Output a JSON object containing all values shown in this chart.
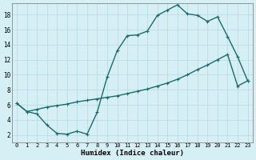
{
  "xlabel": "Humidex (Indice chaleur)",
  "background_color": "#d6eff5",
  "grid_color": "#b8dde6",
  "line_color": "#1a6b6b",
  "xlim": [
    -0.5,
    23.5
  ],
  "ylim": [
    1,
    19.5
  ],
  "xticks": [
    0,
    1,
    2,
    3,
    4,
    5,
    6,
    7,
    8,
    9,
    10,
    11,
    12,
    13,
    14,
    15,
    16,
    17,
    18,
    19,
    20,
    21,
    22,
    23
  ],
  "yticks": [
    2,
    4,
    6,
    8,
    10,
    12,
    14,
    16,
    18
  ],
  "line1_x": [
    0,
    1,
    2,
    3,
    4,
    5,
    6,
    7,
    8,
    9,
    10,
    11,
    12,
    13,
    14,
    15,
    16,
    17,
    18,
    19,
    20,
    21,
    22,
    23
  ],
  "line1_y": [
    6.2,
    5.1,
    4.8,
    3.3,
    2.2,
    2.1,
    2.5,
    2.1,
    5.0,
    9.7,
    13.2,
    15.2,
    15.3,
    15.8,
    17.9,
    18.6,
    19.3,
    18.1,
    17.9,
    17.1,
    17.7,
    15.1,
    12.4,
    9.2
  ],
  "line2_x": [
    0,
    1,
    2,
    3,
    4,
    5,
    6,
    7,
    8,
    9,
    10,
    11,
    12,
    13,
    14,
    15,
    16,
    17,
    18,
    19,
    20,
    21,
    22,
    23
  ],
  "line2_y": [
    6.2,
    5.1,
    5.4,
    5.7,
    5.9,
    6.1,
    6.4,
    6.6,
    6.8,
    7.0,
    7.2,
    7.5,
    7.8,
    8.1,
    8.5,
    8.9,
    9.4,
    10.0,
    10.7,
    11.3,
    12.0,
    12.7,
    8.5,
    9.2
  ],
  "markersize": 3.5,
  "linewidth": 1.0
}
